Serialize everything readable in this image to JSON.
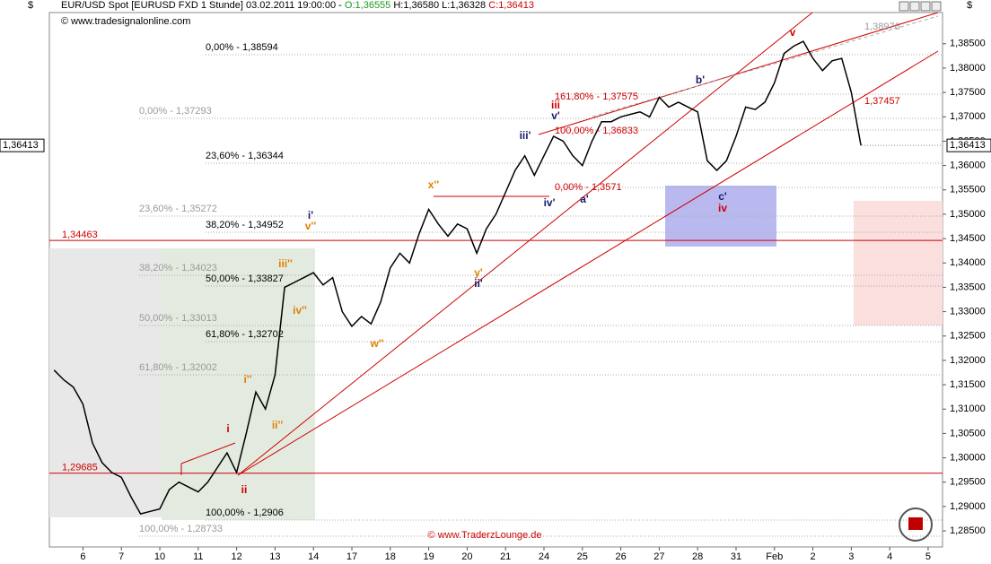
{
  "chart_data": {
    "type": "line",
    "title": "EUR/USD Spot [EURUSD FXD  1 Stunde] 03.02.2011 19:00:00 -",
    "open_label": "O:1,36555",
    "hl_label": "H:1,36580 L:1,36328",
    "close_label": "C:1,36413",
    "currency": "$",
    "source": "© www.tradesignalonline.com",
    "copyright": "© www.TraderzLounge.de",
    "last_price": {
      "value": 1.36413,
      "label": "1,36413"
    },
    "ylim": [
      1.2817,
      1.3914
    ],
    "yticks": [
      {
        "value": 1.285,
        "label": "1,28500"
      },
      {
        "value": 1.29,
        "label": "1,29000"
      },
      {
        "value": 1.295,
        "label": "1,29500"
      },
      {
        "value": 1.3,
        "label": "1,30000"
      },
      {
        "value": 1.305,
        "label": "1,30500"
      },
      {
        "value": 1.31,
        "label": "1,31000"
      },
      {
        "value": 1.315,
        "label": "1,31500"
      },
      {
        "value": 1.32,
        "label": "1,32000"
      },
      {
        "value": 1.325,
        "label": "1,32500"
      },
      {
        "value": 1.33,
        "label": "1,33000"
      },
      {
        "value": 1.335,
        "label": "1,33500"
      },
      {
        "value": 1.34,
        "label": "1,34000"
      },
      {
        "value": 1.345,
        "label": "1,34500"
      },
      {
        "value": 1.35,
        "label": "1,35000"
      },
      {
        "value": 1.355,
        "label": "1,35500"
      },
      {
        "value": 1.36,
        "label": "1,36000"
      },
      {
        "value": 1.365,
        "label": "1,36500"
      },
      {
        "value": 1.37,
        "label": "1,37000"
      },
      {
        "value": 1.375,
        "label": "1,37500"
      },
      {
        "value": 1.38,
        "label": "1,38000"
      },
      {
        "value": 1.385,
        "label": "1,38500"
      }
    ],
    "categories": [
      null,
      null,
      null,
      "6",
      null,
      null,
      null,
      "7",
      null,
      null,
      null,
      "10",
      null,
      null,
      null,
      "11",
      null,
      null,
      null,
      "12",
      null,
      null,
      null,
      "13",
      null,
      null,
      null,
      "14",
      null,
      null,
      null,
      "17",
      null,
      null,
      null,
      "18",
      null,
      null,
      null,
      "19",
      null,
      null,
      null,
      "20",
      null,
      null,
      null,
      "21",
      null,
      null,
      null,
      "24",
      null,
      null,
      null,
      "25",
      null,
      null,
      null,
      "26",
      null,
      null,
      null,
      "27",
      null,
      null,
      null,
      "28",
      null,
      null,
      null,
      "31",
      null,
      null,
      null,
      "Feb",
      null,
      null,
      null,
      "2",
      null,
      null,
      null,
      "3",
      null,
      null,
      null,
      "4",
      null,
      null,
      null,
      "5",
      null
    ],
    "series": [
      {
        "name": "EUR/USD",
        "color": "#000000",
        "values": [
          1.318,
          1.316,
          1.3145,
          1.311,
          1.303,
          1.299,
          1.297,
          1.296,
          1.292,
          1.2885,
          1.289,
          1.2895,
          1.2935,
          1.295,
          1.294,
          1.293,
          1.295,
          1.298,
          1.301,
          1.297,
          1.305,
          1.3135,
          1.31,
          1.317,
          1.335,
          1.336,
          1.337,
          1.338,
          1.3355,
          1.337,
          1.33,
          1.327,
          1.329,
          1.3275,
          1.332,
          1.339,
          1.342,
          1.34,
          1.346,
          1.351,
          1.348,
          1.3455,
          1.348,
          1.347,
          1.342,
          1.347,
          1.35,
          1.3545,
          1.359,
          1.362,
          1.358,
          1.362,
          1.366,
          1.365,
          1.362,
          1.36,
          1.365,
          1.369,
          1.369,
          1.37,
          1.3705,
          1.371,
          1.37,
          1.374,
          1.372,
          1.373,
          1.372,
          1.371,
          1.361,
          1.359,
          1.361,
          1.366,
          1.372,
          1.3715,
          1.373,
          1.377,
          1.383,
          1.3845,
          1.3855,
          1.382,
          1.3795,
          1.3815,
          1.382,
          1.375,
          1.3641,
          null,
          null,
          null,
          null,
          null,
          null,
          null,
          null
        ]
      }
    ],
    "levels": [
      {
        "value": 1.34463,
        "label": "1,34463"
      },
      {
        "value": 1.29685,
        "label": "1,29685"
      }
    ],
    "annotations": [
      {
        "text": "0,00% - 1,38594",
        "color": "#000000"
      },
      {
        "text": "23,60% - 1,36344",
        "color": "#000000"
      },
      {
        "text": "38,20% - 1,34952",
        "color": "#000000"
      },
      {
        "text": "50,00% - 1,33827",
        "color": "#000000"
      },
      {
        "text": "61,80% - 1,32702",
        "color": "#000000"
      },
      {
        "text": "100,00% - 1,2906",
        "color": "#000000"
      },
      {
        "text": "0,00% - 1,37293",
        "color": "#9a9a9a"
      },
      {
        "text": "23,60% - 1,35272",
        "color": "#9a9a9a"
      },
      {
        "text": "38,20% - 1,34023",
        "color": "#9a9a9a"
      },
      {
        "text": "50,00% - 1,33013",
        "color": "#9a9a9a"
      },
      {
        "text": "61,80% - 1,32002",
        "color": "#9a9a9a"
      },
      {
        "text": "100,00% - 1,28733",
        "color": "#9a9a9a"
      },
      {
        "text": "161,80% - 1,37575",
        "color": "#d00000"
      },
      {
        "text": "100,00% - 1,36833",
        "color": "#d00000"
      },
      {
        "text": "0,00% - 1,3571",
        "color": "#d00000"
      },
      {
        "text": "1,38976",
        "color": "#9a9a9a"
      },
      {
        "text": "1,37457",
        "color": "#d00000"
      },
      {
        "text": "v",
        "color": "#d00000"
      },
      {
        "text": "b'",
        "color": "#1a1a6e"
      },
      {
        "text": "iii",
        "color": "#d00000"
      },
      {
        "text": "v'",
        "color": "#1a1a6e"
      },
      {
        "text": "iii'",
        "color": "#1a1a6e"
      },
      {
        "text": "a'",
        "color": "#1a1a6e"
      },
      {
        "text": "iv'",
        "color": "#1a1a6e"
      },
      {
        "text": "x''",
        "color": "#e08000"
      },
      {
        "text": "c'",
        "color": "#1a1a6e"
      },
      {
        "text": "iv",
        "color": "#d00000"
      },
      {
        "text": "i'",
        "color": "#1a1a6e"
      },
      {
        "text": "v''",
        "color": "#e08000"
      },
      {
        "text": "iii''",
        "color": "#e08000"
      },
      {
        "text": "iv''",
        "color": "#e08000"
      },
      {
        "text": "y'",
        "color": "#e08000"
      },
      {
        "text": "ii'",
        "color": "#1a1a6e"
      },
      {
        "text": "w''",
        "color": "#e08000"
      },
      {
        "text": "i''",
        "color": "#e08000"
      },
      {
        "text": "ii''",
        "color": "#e08000"
      },
      {
        "text": "i",
        "color": "#d00000"
      },
      {
        "text": "ii",
        "color": "#d00000"
      }
    ]
  }
}
